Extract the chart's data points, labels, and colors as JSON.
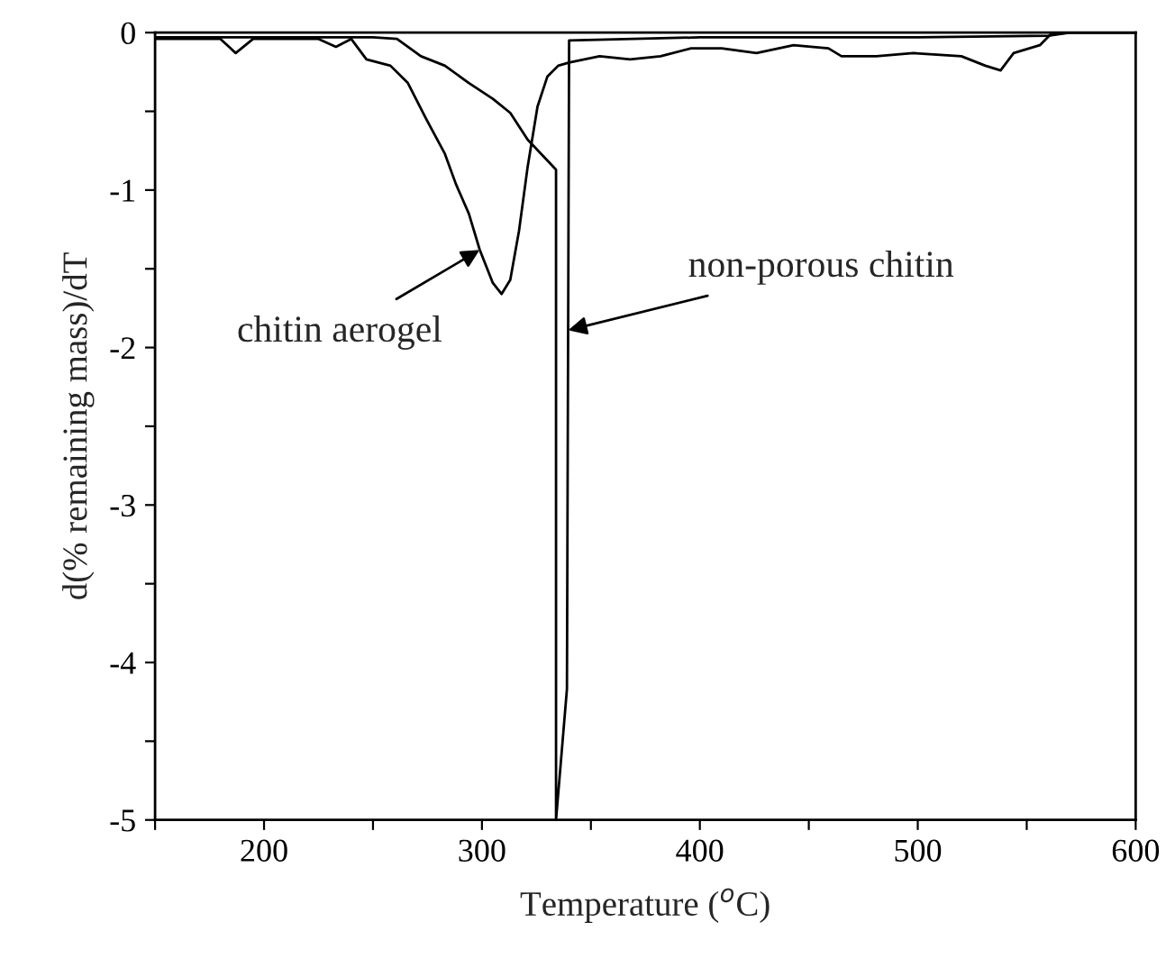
{
  "chart_data": {
    "type": "line",
    "xlabel": "Temperature ($^{o}$C)",
    "ylabel": "d(% remaining mass)/dT",
    "xlim": [
      150,
      600
    ],
    "ylim": [
      -5,
      0
    ],
    "xticks": [
      {
        "value": 150,
        "label": null
      },
      200,
      {
        "value": 250,
        "label": null
      },
      300,
      {
        "value": 350,
        "label": null
      },
      400,
      {
        "value": 450,
        "label": null
      },
      500,
      {
        "value": 550,
        "label": null
      },
      600
    ],
    "yticks": [
      {
        "value": -5,
        "label": "-5"
      },
      {
        "value": -4.5,
        "label": null
      },
      {
        "value": -4,
        "label": "-4"
      },
      {
        "value": -3.5,
        "label": null
      },
      {
        "value": -3,
        "label": "-3"
      },
      {
        "value": -2.5,
        "label": null
      },
      {
        "value": -2,
        "label": "-2"
      },
      {
        "value": -1.5,
        "label": null
      },
      {
        "value": -1,
        "label": "-1"
      },
      {
        "value": -0.5,
        "label": null
      },
      0
    ],
    "grid": false,
    "marker": "none",
    "line_style": "solid",
    "series": [
      {
        "color": "#000000",
        "x": [
          150,
          180,
          187,
          195,
          225,
          233,
          240,
          247,
          258,
          266,
          274.5,
          283,
          288,
          294,
          299,
          305,
          309,
          313,
          317,
          321,
          325.5,
          330,
          335,
          340,
          354,
          368,
          382,
          396,
          410,
          426,
          443,
          459,
          465,
          481,
          498,
          520,
          531,
          538,
          544,
          556,
          561,
          570,
          600
        ],
        "values": [
          -0.04,
          -0.04,
          -0.13,
          -0.04,
          -0.04,
          -0.09,
          -0.04,
          -0.17,
          -0.21,
          -0.32,
          -0.55,
          -0.77,
          -0.96,
          -1.15,
          -1.38,
          -1.59,
          -1.66,
          -1.57,
          -1.26,
          -0.85,
          -0.47,
          -0.28,
          -0.21,
          -0.19,
          -0.15,
          -0.17,
          -0.15,
          -0.1,
          -0.1,
          -0.13,
          -0.08,
          -0.1,
          -0.15,
          -0.15,
          -0.13,
          -0.15,
          -0.21,
          -0.24,
          -0.13,
          -0.08,
          -0.01,
          0,
          0
        ]
      },
      {
        "color": "#000000",
        "x": [
          150,
          200,
          250,
          261,
          272,
          283,
          294,
          305,
          313,
          321,
          334,
          334,
          339,
          340,
          400,
          500,
          560,
          570,
          600
        ],
        "values": [
          -0.03,
          -0.03,
          -0.03,
          -0.04,
          -0.15,
          -0.21,
          -0.32,
          -0.42,
          -0.51,
          -0.68,
          -0.87,
          -5.0,
          -4.17,
          -0.05,
          -0.03,
          -0.03,
          -0.02,
          0,
          0
        ]
      }
    ],
    "annotations": [
      {
        "text": "chitin aerogel",
        "x": 299,
        "y": -1.38
      },
      {
        "text": "non-porous chitin",
        "x": 339.6,
        "y": -1.89
      }
    ]
  }
}
